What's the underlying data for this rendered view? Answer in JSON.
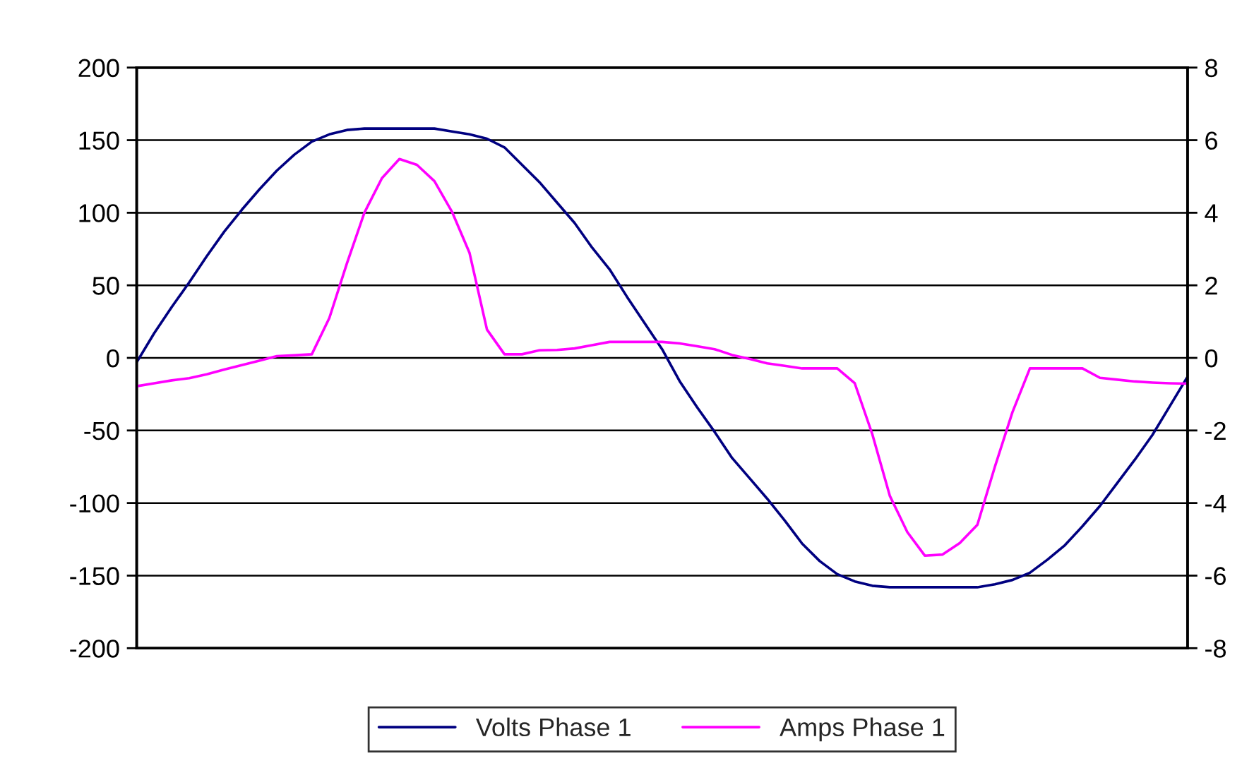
{
  "chart_data": {
    "type": "line",
    "categories": [
      null,
      null,
      null,
      null,
      null,
      null,
      null,
      null,
      null,
      null,
      null,
      null,
      null,
      null,
      null,
      null,
      null,
      null,
      null,
      null,
      null,
      null,
      null,
      null,
      null,
      null,
      null,
      null,
      null,
      null,
      null,
      null,
      null,
      null,
      null,
      null,
      null,
      null,
      null,
      null,
      null,
      null,
      null,
      null,
      null,
      null,
      null,
      null,
      null,
      null,
      null,
      null,
      null,
      null,
      null,
      null,
      null,
      null,
      null,
      null,
      null
    ],
    "series": [
      {
        "name": "Volts Phase 1",
        "color": "#000080",
        "values": [
          -3,
          17,
          35,
          52,
          70,
          87,
          102,
          116,
          129,
          140,
          149,
          154,
          157,
          158,
          158,
          158,
          158,
          158,
          156,
          154,
          151,
          145,
          133,
          121,
          107,
          93,
          76,
          61,
          42,
          24,
          6,
          -16,
          -34,
          -51,
          -69,
          -83,
          -97,
          -112,
          -128,
          -140,
          -149,
          -154,
          -157,
          -158,
          -158,
          -158,
          -158,
          -158,
          -158,
          -156,
          -153,
          -148,
          -139,
          -129,
          -116,
          -102,
          -86,
          -70,
          -53,
          -33,
          -13
        ]
      },
      {
        "name": "Amps Phase 1",
        "color": "#ff00ff",
        "axis": "y2",
        "values": [
          -0.78,
          -0.7,
          -0.62,
          -0.56,
          -0.45,
          -0.32,
          -0.2,
          -0.08,
          0.05,
          0.07,
          0.1,
          1.1,
          2.6,
          4.0,
          4.95,
          5.48,
          5.32,
          4.87,
          4.03,
          2.9,
          0.78,
          0.1,
          0.1,
          0.21,
          0.22,
          0.26,
          0.35,
          0.44,
          0.44,
          0.44,
          0.44,
          0.4,
          0.32,
          0.24,
          0.08,
          -0.03,
          -0.15,
          -0.22,
          -0.29,
          -0.29,
          -0.29,
          -0.7,
          -2.1,
          -3.8,
          -4.8,
          -5.45,
          -5.42,
          -5.1,
          -4.6,
          -3.0,
          -1.5,
          -0.29,
          -0.29,
          -0.29,
          -0.29,
          -0.55,
          -0.6,
          -0.65,
          -0.68,
          -0.7,
          -0.71
        ]
      }
    ],
    "ylim": [
      -200,
      200
    ],
    "yticks": [
      -200,
      -150,
      -100,
      -50,
      0,
      50,
      100,
      150,
      200
    ],
    "y2lim": [
      -8,
      8
    ],
    "y2ticks": [
      -8,
      -6,
      -4,
      -2,
      0,
      2,
      4,
      6,
      8
    ],
    "grid": "y",
    "legend": "bottom",
    "marker": "none",
    "line_style": "solid"
  }
}
